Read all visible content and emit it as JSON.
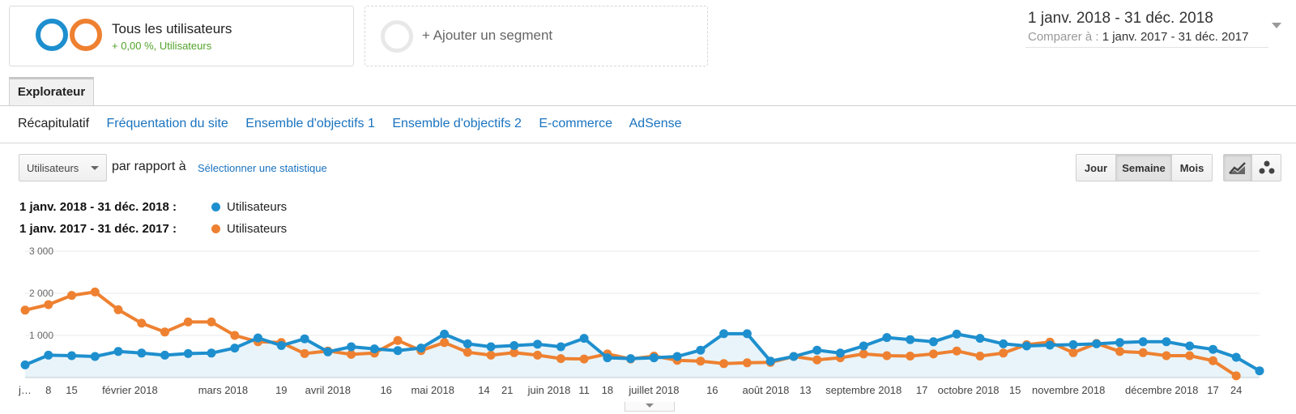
{
  "segments": {
    "active": {
      "title": "Tous les utilisateurs",
      "subtitle": "+ 0,00 %, Utilisateurs",
      "donut_colors": [
        "#1e8fce",
        "#ee8131"
      ]
    },
    "add_label": "+ Ajouter un segment"
  },
  "date_range": {
    "main": "1 janv. 2018 - 31 déc. 2018",
    "compare_label": "Comparer à :",
    "compare_value": "1 janv. 2017 - 31 déc. 2017"
  },
  "tab": {
    "label": "Explorateur"
  },
  "subnav": [
    "Récapitulatif",
    "Fréquentation du site",
    "Ensemble d'objectifs 1",
    "Ensemble d'objectifs 2",
    "E-commerce",
    "AdSense"
  ],
  "metric": {
    "selected": "Utilisateurs",
    "vs_text": "par rapport à",
    "select_link": "Sélectionner une statistique"
  },
  "period": {
    "options": [
      "Jour",
      "Semaine",
      "Mois"
    ],
    "active": "Semaine"
  },
  "chart_type_icons": [
    "line-chart-icon",
    "motion-chart-icon"
  ],
  "legend": [
    {
      "range": "1 janv. 2018 - 31 déc. 2018 :",
      "name": "Utilisateurs",
      "color": "#1e8fce"
    },
    {
      "range": "1 janv. 2017 - 31 déc. 2017 :",
      "name": "Utilisateurs",
      "color": "#ee8131"
    }
  ],
  "chart_data": {
    "type": "line",
    "ylim": [
      0,
      3000
    ],
    "yticks": [
      1000,
      2000,
      3000
    ],
    "ytick_labels": [
      "1 000",
      "2 000",
      "3 000"
    ],
    "grid": true,
    "x_tick_labels": [
      {
        "label": "j…",
        "index": 0
      },
      {
        "label": "8",
        "index": 1
      },
      {
        "label": "15",
        "index": 2
      },
      {
        "label": "février 2018",
        "index": 4.5
      },
      {
        "label": "mars 2018",
        "index": 8.5
      },
      {
        "label": "19",
        "index": 11
      },
      {
        "label": "avril 2018",
        "index": 13
      },
      {
        "label": "16",
        "index": 15.5
      },
      {
        "label": "mai 2018",
        "index": 17.5
      },
      {
        "label": "14",
        "index": 19.7
      },
      {
        "label": "21",
        "index": 20.7
      },
      {
        "label": "juin 2018",
        "index": 22.5
      },
      {
        "label": "11",
        "index": 24
      },
      {
        "label": "18",
        "index": 25
      },
      {
        "label": "juillet 2018",
        "index": 27
      },
      {
        "label": "16",
        "index": 29.5
      },
      {
        "label": "août 2018",
        "index": 31.8
      },
      {
        "label": "13",
        "index": 33.5
      },
      {
        "label": "septembre 2018",
        "index": 36
      },
      {
        "label": "17",
        "index": 38.5
      },
      {
        "label": "octobre 2018",
        "index": 40.5
      },
      {
        "label": "15",
        "index": 42.5
      },
      {
        "label": "novembre 2018",
        "index": 44.8
      },
      {
        "label": "décembre 2018",
        "index": 48.8
      },
      {
        "label": "17",
        "index": 51
      },
      {
        "label": "24",
        "index": 52
      }
    ],
    "series": [
      {
        "name": "Utilisateurs",
        "period": "1 janv. 2018 - 31 déc. 2018",
        "color": "#1e8fce",
        "fill": true,
        "values": [
          300,
          530,
          520,
          500,
          620,
          580,
          530,
          570,
          580,
          700,
          940,
          760,
          920,
          610,
          730,
          680,
          640,
          700,
          1030,
          800,
          730,
          760,
          790,
          730,
          930,
          470,
          450,
          470,
          500,
          650,
          1040,
          1040,
          390,
          500,
          650,
          580,
          750,
          950,
          900,
          850,
          1030,
          930,
          800,
          750,
          770,
          780,
          800,
          830,
          850,
          850,
          750,
          670,
          480,
          160
        ]
      },
      {
        "name": "Utilisateurs",
        "period": "1 janv. 2017 - 31 déc. 2017",
        "color": "#ee8131",
        "fill": false,
        "values": [
          1600,
          1730,
          1950,
          2030,
          1610,
          1290,
          1080,
          1320,
          1320,
          1000,
          850,
          830,
          570,
          630,
          550,
          580,
          880,
          640,
          830,
          600,
          530,
          590,
          530,
          450,
          440,
          560,
          440,
          510,
          410,
          390,
          330,
          350,
          360,
          500,
          420,
          470,
          560,
          520,
          510,
          560,
          630,
          510,
          580,
          780,
          840,
          590,
          810,
          620,
          590,
          520,
          520,
          400,
          40
        ]
      }
    ]
  }
}
